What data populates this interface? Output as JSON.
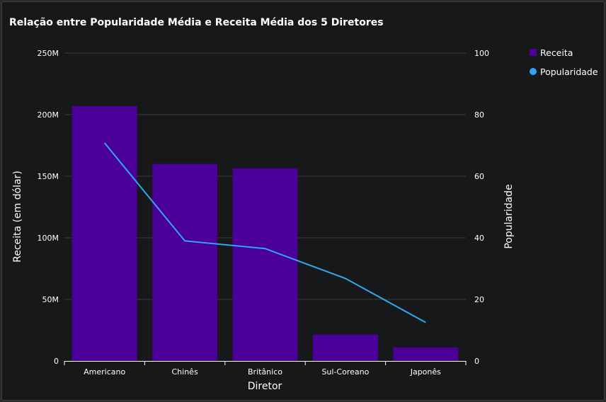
{
  "chart_data": {
    "type": "bar",
    "title": "Relação entre Popularidade Média e Receita Média dos 5 Diretores",
    "xlabel": "Diretor",
    "ylabel": "Receita (em dólar)",
    "y2label": "Popularidade",
    "categories": [
      "Americano",
      "Chinês",
      "Britânico",
      "Sul-Coreano",
      "Japonês"
    ],
    "series": [
      {
        "name": "Receita",
        "type": "bar",
        "axis": "left",
        "color": "#4a0099",
        "values": [
          207000000,
          160000000,
          156500000,
          21500000,
          11000000
        ]
      },
      {
        "name": "Popularidade",
        "type": "line",
        "axis": "right",
        "color": "#2fa8f0",
        "values": [
          70.8,
          39,
          36.5,
          26.8,
          12.5
        ]
      }
    ],
    "ylim": [
      0,
      250000000
    ],
    "y2lim": [
      0,
      100
    ],
    "yticks": [
      "0",
      "50M",
      "100M",
      "150M",
      "200M",
      "250M"
    ],
    "y2ticks": [
      "0",
      "20",
      "40",
      "60",
      "80",
      "100"
    ],
    "grid": true,
    "legend": "top-right"
  }
}
